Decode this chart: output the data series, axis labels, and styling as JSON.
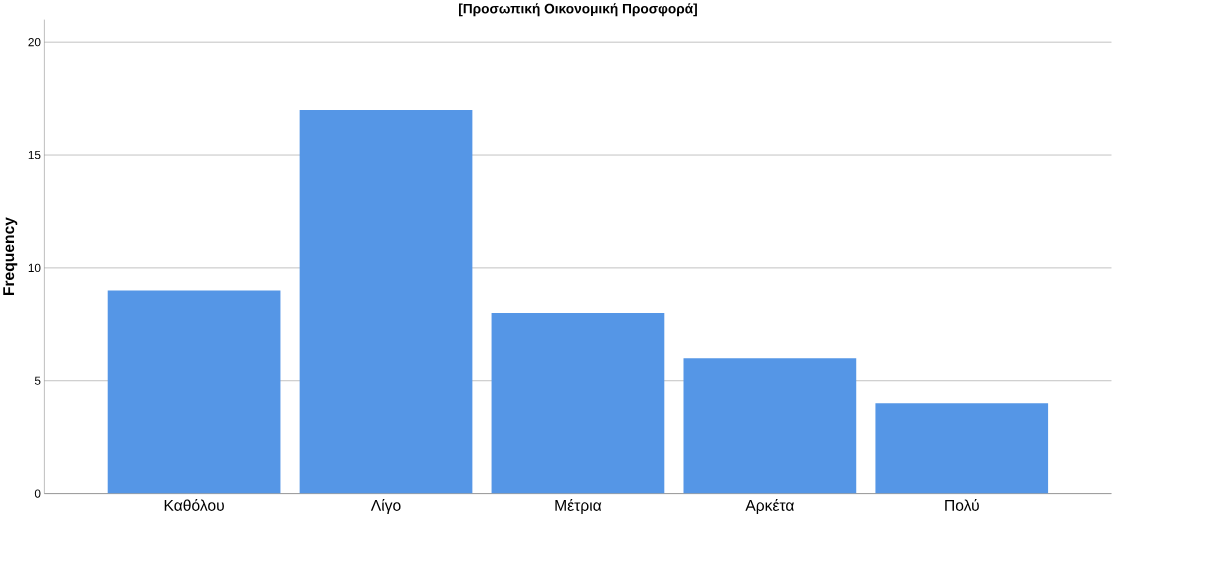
{
  "chart_data": {
    "type": "bar",
    "title": "[Προσωπική Οικονομική Προσφορά]",
    "ylabel": "Frequency",
    "categories": [
      "Καθόλου",
      "Λίγο",
      "Μέτρια",
      "Αρκέτα",
      "Πολύ"
    ],
    "values": [
      9,
      17,
      8,
      6,
      4
    ],
    "color": "#5596e6",
    "ylim": [
      0,
      21
    ],
    "yticks": [
      0,
      5,
      10,
      15,
      20
    ],
    "grid": "y"
  }
}
